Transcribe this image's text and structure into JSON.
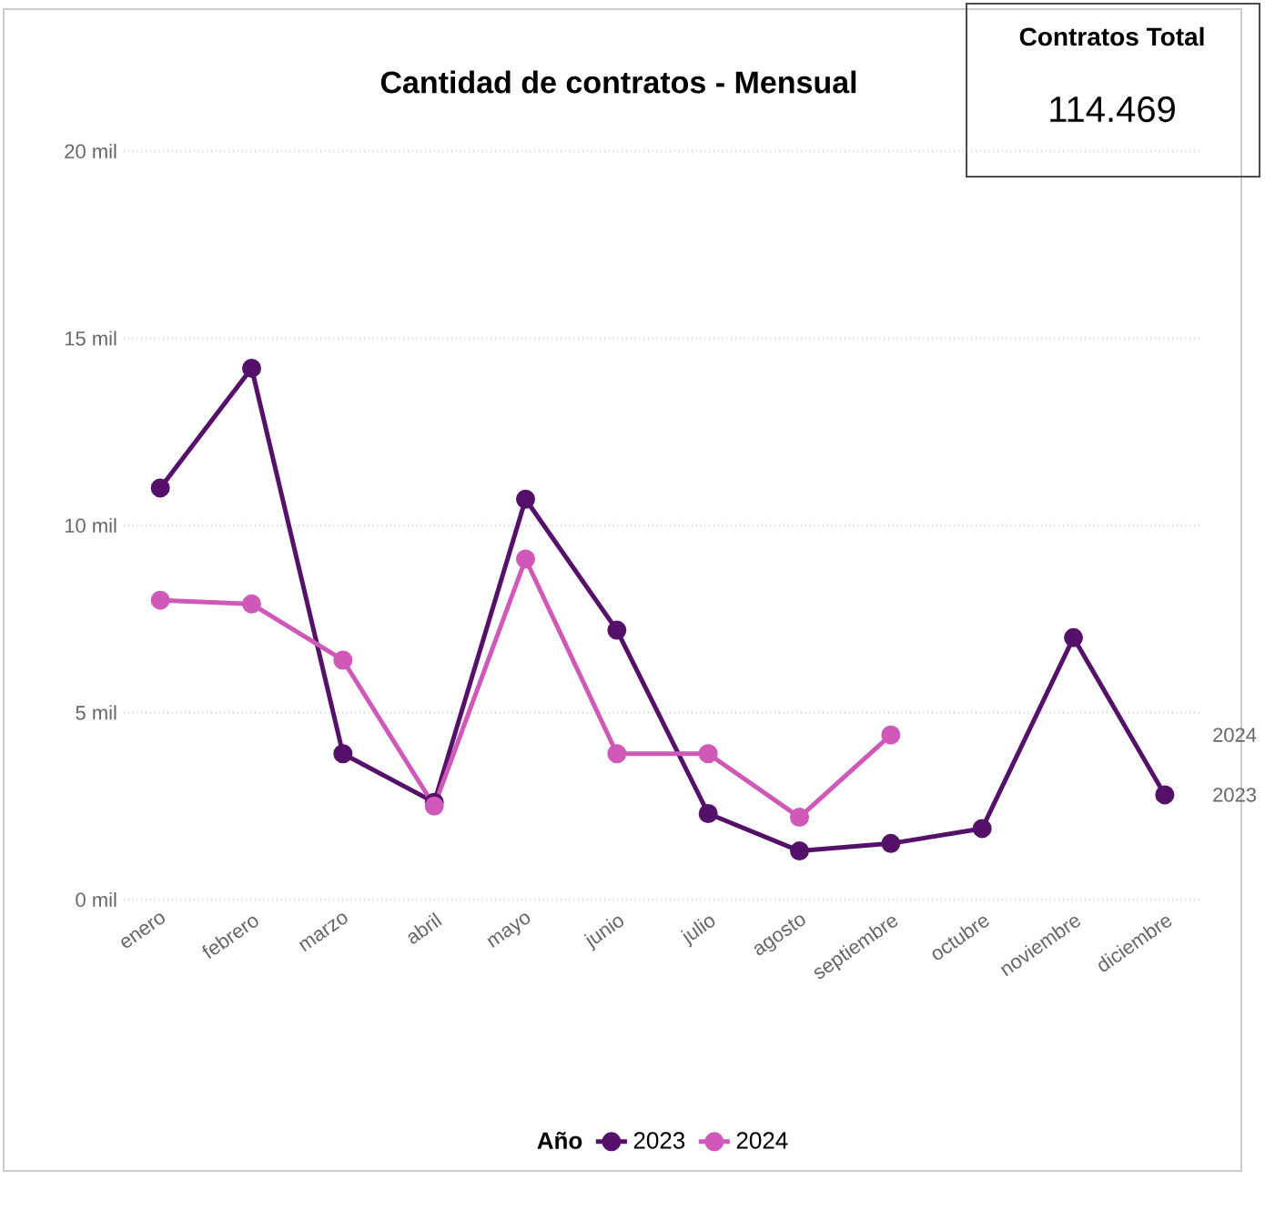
{
  "chart_data": {
    "type": "line",
    "title": "Cantidad de contratos - Mensual",
    "annotations": [
      "Contratos Total",
      "114.469"
    ],
    "legend_title": "Año",
    "categories": [
      "enero",
      "febrero",
      "marzo",
      "abril",
      "mayo",
      "junio",
      "julio",
      "agosto",
      "septiembre",
      "octubre",
      "noviembre",
      "diciembre"
    ],
    "series": [
      {
        "name": "2023",
        "color": "#55106a",
        "values": [
          11.0,
          14.2,
          3.9,
          2.6,
          10.7,
          7.2,
          2.3,
          1.3,
          1.5,
          1.9,
          7.0,
          2.8
        ]
      },
      {
        "name": "2024",
        "color": "#d058b8",
        "values": [
          8.0,
          7.9,
          6.4,
          2.5,
          9.1,
          3.9,
          3.9,
          2.2,
          4.4,
          null,
          null,
          null
        ]
      }
    ],
    "ylim": [
      0,
      20
    ],
    "yticks": [
      {
        "value": 0,
        "label": "0 mil"
      },
      {
        "value": 5,
        "label": "5 mil"
      },
      {
        "value": 10,
        "label": "10 mil"
      },
      {
        "value": 15,
        "label": "15 mil"
      },
      {
        "value": 20,
        "label": "20 mil"
      }
    ],
    "grid": "y",
    "legend": "bottom",
    "marker": "circle",
    "line_style": "solid"
  }
}
